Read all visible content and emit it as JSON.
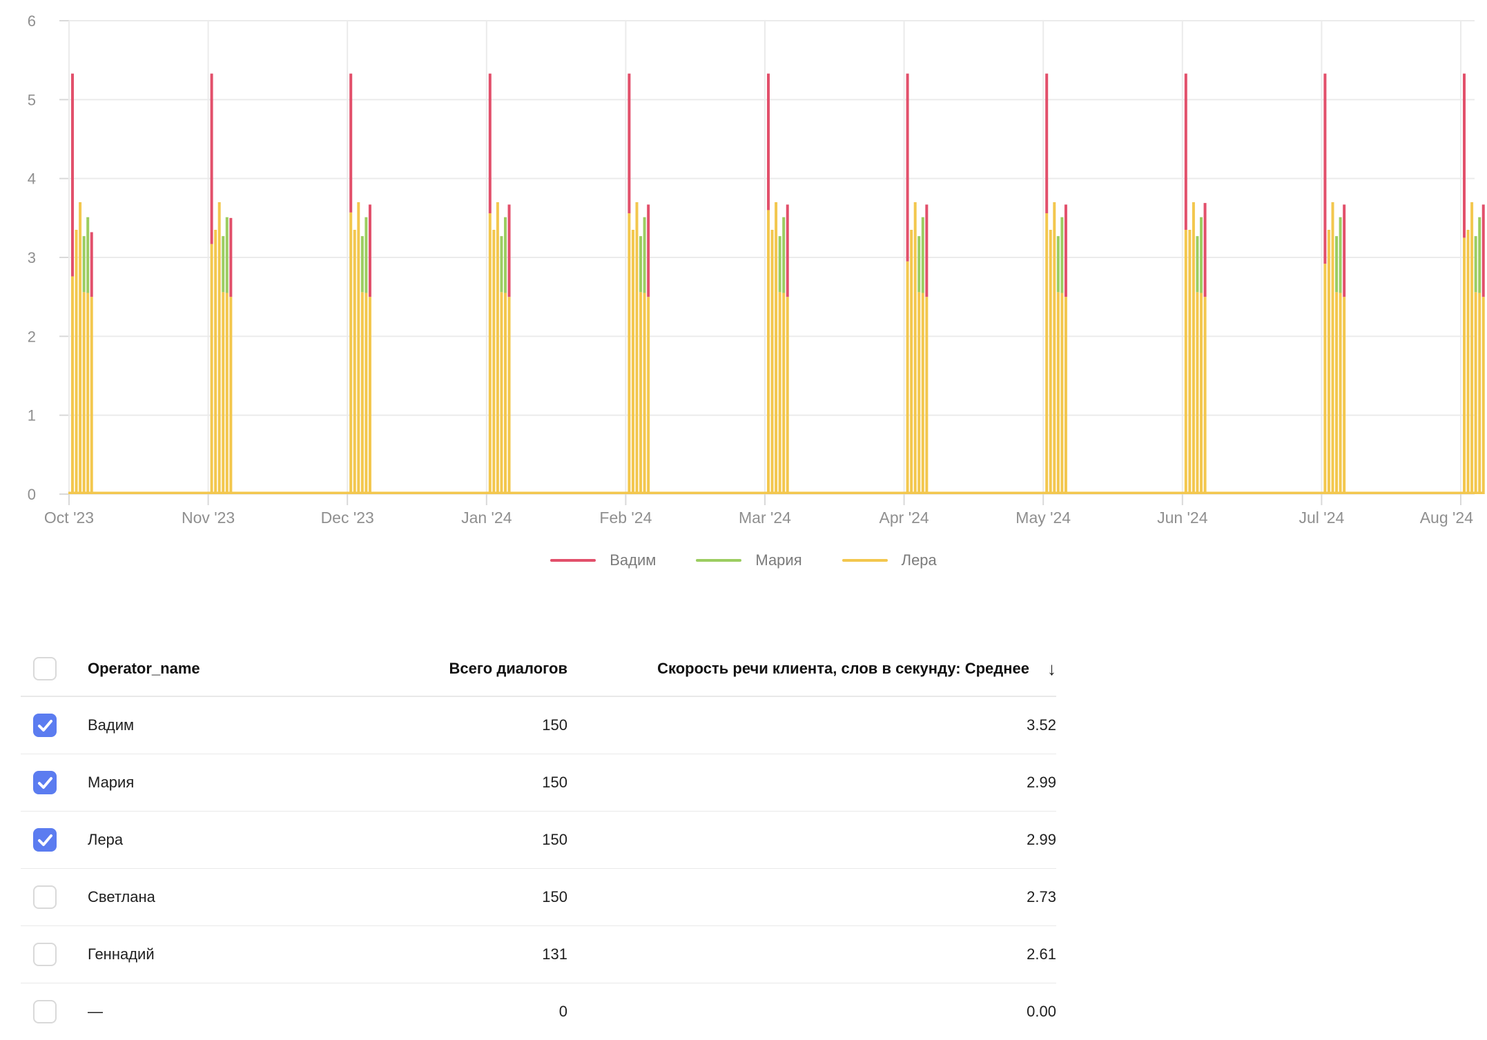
{
  "colors": {
    "series_vadim": "#e2506b",
    "series_maria": "#9ccd61",
    "series_lera": "#f3c74e",
    "checkbox_checked": "#5b7cf0",
    "axis_text": "#8f8f8f",
    "gridline": "#ebebeb",
    "tick": "#d9d9d9",
    "legend_text": "#7b7b7b"
  },
  "legend": [
    {
      "label": "Вадим",
      "color": "#e2506b"
    },
    {
      "label": "Мария",
      "color": "#9ccd61"
    },
    {
      "label": "Лера",
      "color": "#f3c74e"
    }
  ],
  "chart_data": {
    "type": "bar",
    "title": "",
    "xlabel": "",
    "ylabel": "",
    "ylim": [
      0,
      6
    ],
    "y_ticks": [
      0,
      1,
      2,
      3,
      4,
      5,
      6
    ],
    "grid": true,
    "legend_position": "bottom",
    "x_categories": [
      "Oct '23",
      "Nov '23",
      "Dec '23",
      "Jan '24",
      "Feb '24",
      "Mar '24",
      "Apr '24",
      "May '24",
      "Jun '24",
      "Jul '24",
      "Aug '24"
    ],
    "series_legend": [
      {
        "name": "Вадим",
        "color": "#e2506b"
      },
      {
        "name": "Мария",
        "color": "#9ccd61"
      },
      {
        "name": "Лера",
        "color": "#f3c74e"
      }
    ],
    "baseline_series": {
      "name": "Лера",
      "value": 0.03
    },
    "clusters": [
      {
        "month": "Oct '23",
        "bars": [
          [
            [
              "Лера",
              0,
              2.76
            ],
            [
              "Вадим",
              2.76,
              5.33
            ]
          ],
          [
            [
              "Лера",
              0,
              3.35
            ]
          ],
          [
            [
              "Лера",
              0,
              3.7
            ]
          ],
          [
            [
              "Лера",
              0,
              2.56
            ],
            [
              "Мария",
              2.56,
              3.27
            ]
          ],
          [
            [
              "Лера",
              0,
              2.55
            ],
            [
              "Мария",
              2.55,
              3.51
            ]
          ],
          [
            [
              "Лера",
              0,
              2.5
            ],
            [
              "Вадим",
              2.5,
              3.32
            ]
          ]
        ]
      },
      {
        "month": "Nov '23",
        "bars": [
          [
            [
              "Лера",
              0,
              3.17
            ],
            [
              "Вадим",
              3.17,
              5.33
            ]
          ],
          [
            [
              "Лера",
              0,
              3.35
            ]
          ],
          [
            [
              "Лера",
              0,
              3.7
            ]
          ],
          [
            [
              "Лера",
              0,
              2.56
            ],
            [
              "Мария",
              2.56,
              3.27
            ]
          ],
          [
            [
              "Лера",
              0,
              2.55
            ],
            [
              "Мария",
              2.55,
              3.51
            ]
          ],
          [
            [
              "Лера",
              0,
              2.5
            ],
            [
              "Вадим",
              2.5,
              3.5
            ]
          ]
        ]
      },
      {
        "month": "Dec '23",
        "bars": [
          [
            [
              "Лера",
              0,
              3.57
            ],
            [
              "Вадим",
              3.57,
              5.33
            ]
          ],
          [
            [
              "Лера",
              0,
              3.35
            ]
          ],
          [
            [
              "Лера",
              0,
              3.7
            ]
          ],
          [
            [
              "Лера",
              0,
              2.56
            ],
            [
              "Мария",
              2.56,
              3.27
            ]
          ],
          [
            [
              "Лера",
              0,
              2.55
            ],
            [
              "Мария",
              2.55,
              3.51
            ]
          ],
          [
            [
              "Лера",
              0,
              2.5
            ],
            [
              "Вадим",
              2.5,
              3.67
            ]
          ]
        ]
      },
      {
        "month": "Jan '24",
        "bars": [
          [
            [
              "Лера",
              0,
              3.56
            ],
            [
              "Вадим",
              3.56,
              5.33
            ]
          ],
          [
            [
              "Лера",
              0,
              3.35
            ]
          ],
          [
            [
              "Лера",
              0,
              3.7
            ]
          ],
          [
            [
              "Лера",
              0,
              2.56
            ],
            [
              "Мария",
              2.56,
              3.27
            ]
          ],
          [
            [
              "Лера",
              0,
              2.55
            ],
            [
              "Мария",
              2.55,
              3.51
            ]
          ],
          [
            [
              "Лера",
              0,
              2.5
            ],
            [
              "Вадим",
              2.5,
              3.67
            ]
          ]
        ]
      },
      {
        "month": "Feb '24",
        "bars": [
          [
            [
              "Лера",
              0,
              3.56
            ],
            [
              "Вадим",
              3.56,
              5.33
            ]
          ],
          [
            [
              "Лера",
              0,
              3.35
            ]
          ],
          [
            [
              "Лера",
              0,
              3.7
            ]
          ],
          [
            [
              "Лера",
              0,
              2.56
            ],
            [
              "Мария",
              2.56,
              3.27
            ]
          ],
          [
            [
              "Лера",
              0,
              2.55
            ],
            [
              "Мария",
              2.55,
              3.51
            ]
          ],
          [
            [
              "Лера",
              0,
              2.5
            ],
            [
              "Вадим",
              2.5,
              3.67
            ]
          ]
        ]
      },
      {
        "month": "Mar '24",
        "bars": [
          [
            [
              "Лера",
              0,
              3.6
            ],
            [
              "Вадим",
              3.6,
              5.33
            ]
          ],
          [
            [
              "Лера",
              0,
              3.35
            ]
          ],
          [
            [
              "Лера",
              0,
              3.7
            ]
          ],
          [
            [
              "Лера",
              0,
              2.56
            ],
            [
              "Мария",
              2.56,
              3.27
            ]
          ],
          [
            [
              "Лера",
              0,
              2.55
            ],
            [
              "Мария",
              2.55,
              3.51
            ]
          ],
          [
            [
              "Лера",
              0,
              2.5
            ],
            [
              "Вадим",
              2.5,
              3.67
            ]
          ]
        ]
      },
      {
        "month": "Apr '24",
        "bars": [
          [
            [
              "Лера",
              0,
              2.95
            ],
            [
              "Вадим",
              2.95,
              5.33
            ]
          ],
          [
            [
              "Лера",
              0,
              3.35
            ]
          ],
          [
            [
              "Лера",
              0,
              3.7
            ]
          ],
          [
            [
              "Лера",
              0,
              2.56
            ],
            [
              "Мария",
              2.56,
              3.27
            ]
          ],
          [
            [
              "Лера",
              0,
              2.55
            ],
            [
              "Мария",
              2.55,
              3.51
            ]
          ],
          [
            [
              "Лера",
              0,
              2.5
            ],
            [
              "Вадим",
              2.5,
              3.67
            ]
          ]
        ]
      },
      {
        "month": "May '24",
        "bars": [
          [
            [
              "Лера",
              0,
              3.56
            ],
            [
              "Вадим",
              3.56,
              5.33
            ]
          ],
          [
            [
              "Лера",
              0,
              3.35
            ]
          ],
          [
            [
              "Лера",
              0,
              3.7
            ]
          ],
          [
            [
              "Лера",
              0,
              2.56
            ],
            [
              "Мария",
              2.56,
              3.27
            ]
          ],
          [
            [
              "Лера",
              0,
              2.55
            ],
            [
              "Мария",
              2.55,
              3.51
            ]
          ],
          [
            [
              "Лера",
              0,
              2.5
            ],
            [
              "Вадим",
              2.5,
              3.67
            ]
          ]
        ]
      },
      {
        "month": "Jun '24",
        "bars": [
          [
            [
              "Лера",
              0,
              3.35
            ],
            [
              "Вадим",
              3.35,
              5.33
            ]
          ],
          [
            [
              "Лера",
              0,
              3.35
            ]
          ],
          [
            [
              "Лера",
              0,
              3.7
            ]
          ],
          [
            [
              "Лера",
              0,
              2.56
            ],
            [
              "Мария",
              2.56,
              3.27
            ]
          ],
          [
            [
              "Лера",
              0,
              2.55
            ],
            [
              "Мария",
              2.55,
              3.51
            ]
          ],
          [
            [
              "Лера",
              0,
              2.5
            ],
            [
              "Вадим",
              2.5,
              3.69
            ]
          ]
        ]
      },
      {
        "month": "Jul '24",
        "bars": [
          [
            [
              "Лера",
              0,
              2.92
            ],
            [
              "Вадим",
              2.92,
              5.33
            ]
          ],
          [
            [
              "Лера",
              0,
              3.35
            ]
          ],
          [
            [
              "Лера",
              0,
              3.7
            ]
          ],
          [
            [
              "Лера",
              0,
              2.56
            ],
            [
              "Мария",
              2.56,
              3.27
            ]
          ],
          [
            [
              "Лера",
              0,
              2.55
            ],
            [
              "Мария",
              2.55,
              3.51
            ]
          ],
          [
            [
              "Лера",
              0,
              2.5
            ],
            [
              "Вадим",
              2.5,
              3.67
            ]
          ]
        ]
      },
      {
        "month": "Aug '24",
        "bars": [
          [
            [
              "Лера",
              0,
              3.25
            ],
            [
              "Вадим",
              3.25,
              5.33
            ]
          ],
          [
            [
              "Лера",
              0,
              3.35
            ]
          ],
          [
            [
              "Лера",
              0,
              3.7
            ]
          ],
          [
            [
              "Лера",
              0,
              2.56
            ],
            [
              "Мария",
              2.56,
              3.27
            ]
          ],
          [
            [
              "Лера",
              0,
              2.55
            ],
            [
              "Мария",
              2.55,
              3.51
            ]
          ],
          [
            [
              "Лера",
              0,
              2.5
            ],
            [
              "Вадим",
              2.5,
              3.67
            ]
          ]
        ]
      }
    ]
  },
  "table": {
    "headers": {
      "name": "Operator_name",
      "dialogs": "Всего диалогов",
      "speed": "Скорость речи клиента, слов в секунду: Среднее",
      "sort_icon": "↓"
    },
    "rows": [
      {
        "name": "Вадим",
        "dialogs": "150",
        "speed": "3.52",
        "checked": true
      },
      {
        "name": "Мария",
        "dialogs": "150",
        "speed": "2.99",
        "checked": true
      },
      {
        "name": "Лера",
        "dialogs": "150",
        "speed": "2.99",
        "checked": true
      },
      {
        "name": "Светлана",
        "dialogs": "150",
        "speed": "2.73",
        "checked": false
      },
      {
        "name": "Геннадий",
        "dialogs": "131",
        "speed": "2.61",
        "checked": false
      },
      {
        "name": "—",
        "dialogs": "0",
        "speed": "0.00",
        "checked": false
      }
    ]
  }
}
